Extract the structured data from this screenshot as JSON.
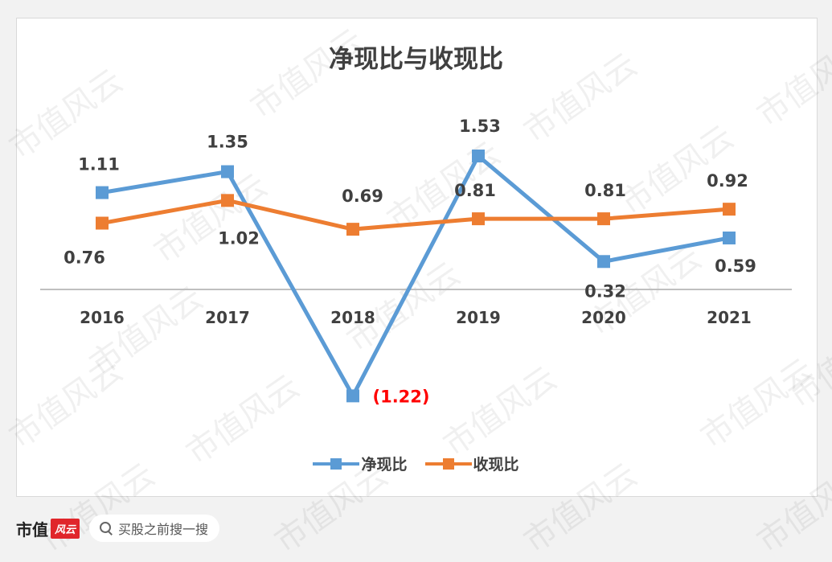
{
  "chart_data": {
    "type": "line",
    "title": "净现比与收现比",
    "categories": [
      "2016",
      "2017",
      "2018",
      "2019",
      "2020",
      "2021"
    ],
    "series": [
      {
        "name": "净现比",
        "color": "#5b9bd5",
        "values": [
          1.11,
          1.35,
          -1.22,
          1.53,
          0.32,
          0.59
        ],
        "labels": [
          "1.11",
          "1.35",
          "(1.22)",
          "1.53",
          "0.32",
          "0.59"
        ]
      },
      {
        "name": "收现比",
        "color": "#ed7d31",
        "values": [
          0.76,
          1.02,
          0.69,
          0.81,
          0.81,
          0.92
        ],
        "labels": [
          "0.76",
          "1.02",
          "0.69",
          "0.81",
          "0.81",
          "0.92"
        ]
      }
    ],
    "negative_label_color": "#ff0000",
    "axis_color": "#bfbfbf",
    "grid": false,
    "legend_position": "bottom"
  },
  "watermark": "市值风云",
  "footer": {
    "brand_text": "市值",
    "brand_mark": "风云",
    "search_placeholder": "买股之前搜一搜",
    "search_icon": "search-icon"
  }
}
